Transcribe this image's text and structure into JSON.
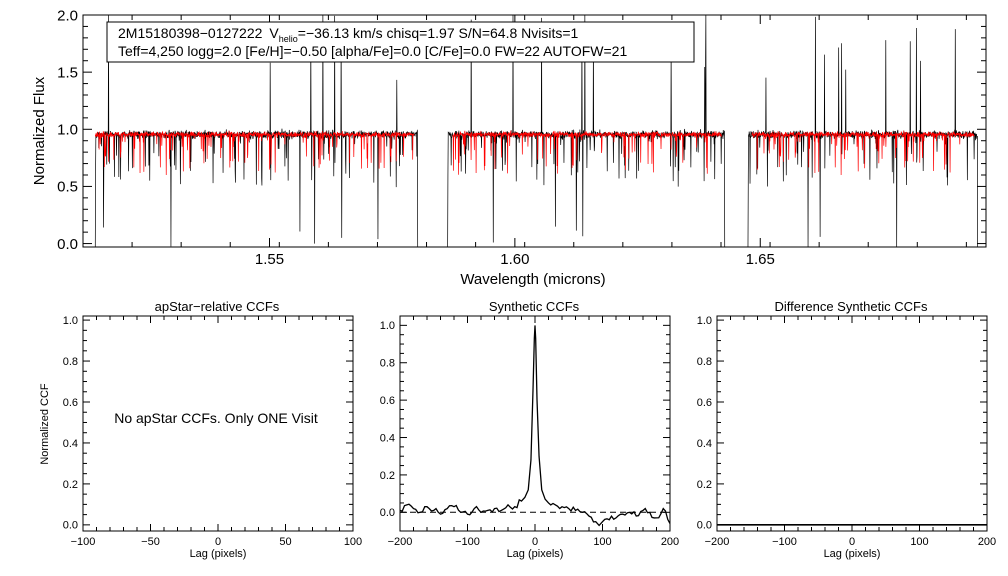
{
  "chart_data": [
    {
      "type": "line",
      "title": "",
      "xlabel": "Wavelength (microns)",
      "ylabel": "Normalized Flux",
      "xlim": [
        1.512,
        1.696
      ],
      "ylim": [
        -0.03,
        2.0
      ],
      "xticks": [
        1.55,
        1.6,
        1.65
      ],
      "xtick_labels": [
        "1.55",
        "1.60",
        "1.65"
      ],
      "yticks": [
        0.0,
        0.5,
        1.0,
        1.5,
        2.0
      ],
      "ytick_labels": [
        "0.0",
        "0.5",
        "1.0",
        "1.5",
        "2.0"
      ],
      "chips": [
        [
          1.5145,
          1.5802
        ],
        [
          1.5863,
          1.6428
        ],
        [
          1.6475,
          1.6943
        ]
      ],
      "model_chips": [
        [
          1.5145,
          1.5795
        ],
        [
          1.5873,
          1.6421
        ],
        [
          1.6483,
          1.6936
        ]
      ],
      "annotation": {
        "id": "2M15180398−0127222",
        "v_prefix": "V",
        "v_sub": "helio",
        "v_rest": "=−36.13 km/s  chisq=1.97  S/N=64.8  Nvisits=1",
        "line2": "Teff=4,250 logg=2.0 [Fe/H]=−0.50 [alpha/Fe]=0.0 [C/Fe]=0.0 FW=22 AUTOFW=21"
      },
      "series": [],
      "colors": {
        "observed": "#000000",
        "model": "#ff0000"
      }
    },
    {
      "type": "line",
      "title": "apStar−relative CCFs",
      "xlabel": "Lag (pixels)",
      "ylabel": "Normalized CCF",
      "xlim": [
        -100,
        100
      ],
      "ylim": [
        -0.03,
        1.02
      ],
      "xticks": [
        -100,
        -50,
        0,
        50,
        100
      ],
      "xtick_labels": [
        "−100",
        "−50",
        "0",
        "50",
        "100"
      ],
      "yticks": [
        0.0,
        0.2,
        0.4,
        0.6,
        0.8,
        1.0
      ],
      "ytick_labels": [
        "0.0",
        "0.2",
        "0.4",
        "0.6",
        "0.8",
        "1.0"
      ],
      "note": "No apStar CCFs.  Only ONE Visit",
      "series": []
    },
    {
      "type": "line",
      "title": "Synthetic CCFs",
      "xlabel": "Lag (pixels)",
      "ylabel": "",
      "xlim": [
        -200,
        200
      ],
      "ylim": [
        -0.1,
        1.05
      ],
      "xticks": [
        -200,
        -100,
        0,
        100,
        200
      ],
      "xtick_labels": [
        "−200",
        "−100",
        "0",
        "100",
        "200"
      ],
      "yticks": [
        0.0,
        0.2,
        0.4,
        0.6,
        0.8,
        1.0
      ],
      "ytick_labels": [
        "0.0",
        "0.2",
        "0.4",
        "0.6",
        "0.8",
        "1.0"
      ],
      "baseline": 0.0,
      "series": [
        {
          "x": [
            -200,
            -190,
            -180,
            -170,
            -160,
            -150,
            -140,
            -130,
            -120,
            -110,
            -100,
            -90,
            -80,
            -70,
            -60,
            -50,
            -40,
            -30,
            -20,
            -15,
            -10,
            -6,
            -3,
            -1,
            0,
            1,
            3,
            6,
            10,
            15,
            20,
            30,
            40,
            50,
            60,
            70,
            80,
            90,
            95,
            100,
            110,
            120,
            130,
            140,
            150,
            160,
            170,
            180,
            190,
            200
          ],
          "values": [
            0.01,
            0.04,
            0.02,
            0.0,
            0.03,
            0.01,
            -0.01,
            0.02,
            0.03,
            0.0,
            -0.01,
            0.02,
            0.0,
            0.01,
            0.02,
            0.01,
            0.04,
            0.03,
            0.06,
            0.08,
            0.12,
            0.28,
            0.65,
            0.93,
            1.0,
            0.93,
            0.6,
            0.3,
            0.12,
            0.07,
            0.05,
            0.04,
            0.03,
            0.02,
            0.01,
            0.0,
            -0.02,
            -0.05,
            -0.07,
            -0.05,
            -0.04,
            -0.03,
            -0.01,
            0.0,
            -0.02,
            0.01,
            0.0,
            -0.03,
            0.02,
            -0.06
          ]
        }
      ]
    },
    {
      "type": "line",
      "title": "Difference Synthetic CCFs",
      "xlabel": "Lag (pixels)",
      "ylabel": "",
      "xlim": [
        -200,
        200
      ],
      "ylim": [
        -0.03,
        1.02
      ],
      "xticks": [
        -200,
        -100,
        0,
        100,
        200
      ],
      "xtick_labels": [
        "−200",
        "−100",
        "0",
        "100",
        "200"
      ],
      "yticks": [
        0.0,
        0.2,
        0.4,
        0.6,
        0.8,
        1.0
      ],
      "ytick_labels": [
        "0.0",
        "0.2",
        "0.4",
        "0.6",
        "0.8",
        "1.0"
      ],
      "series": [
        {
          "x": [
            -200,
            200
          ],
          "values": [
            0.0,
            0.0
          ]
        }
      ]
    }
  ]
}
